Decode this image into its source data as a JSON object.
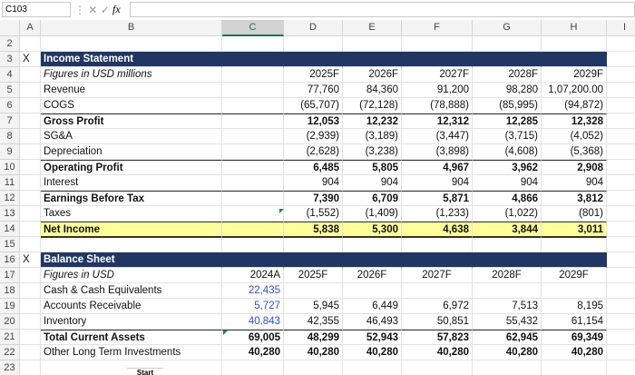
{
  "formula_bar": {
    "name_box": "C103",
    "fx": "fx"
  },
  "columns": [
    "A",
    "B",
    "C",
    "D",
    "E",
    "F",
    "G",
    "H",
    "I"
  ],
  "rows": [
    {
      "row": "2",
      "cells": {}
    },
    {
      "row": "3",
      "cells": {
        "A": "X",
        "B": "Income Statement"
      }
    },
    {
      "row": "4",
      "cells": {
        "B": "Figures in USD millions",
        "D": "2025F",
        "E": "2026F",
        "F": "2027F",
        "G": "2028F",
        "H": "2029F"
      }
    },
    {
      "row": "5",
      "cells": {
        "B": "Revenue",
        "D": "77,760",
        "E": "84,360",
        "F": "91,200",
        "G": "98,280",
        "H": "1,07,200.00"
      }
    },
    {
      "row": "6",
      "cells": {
        "B": "COGS",
        "D": "(65,707)",
        "E": "(72,128)",
        "F": "(78,888)",
        "G": "(85,995)",
        "H": "(94,872)"
      }
    },
    {
      "row": "7",
      "cells": {
        "B": "Gross Profit",
        "D": "12,053",
        "E": "12,232",
        "F": "12,312",
        "G": "12,285",
        "H": "12,328"
      }
    },
    {
      "row": "8",
      "cells": {
        "B": "SG&A",
        "D": "(2,939)",
        "E": "(3,189)",
        "F": "(3,447)",
        "G": "(3,715)",
        "H": "(4,052)"
      }
    },
    {
      "row": "9",
      "cells": {
        "B": "Depreciation",
        "D": "(2,628)",
        "E": "(3,238)",
        "F": "(3,898)",
        "G": "(4,608)",
        "H": "(5,368)"
      }
    },
    {
      "row": "10",
      "cells": {
        "B": "Operating Profit",
        "D": "6,485",
        "E": "5,805",
        "F": "4,967",
        "G": "3,962",
        "H": "2,908"
      }
    },
    {
      "row": "11",
      "cells": {
        "B": "Interest",
        "D": "904",
        "E": "904",
        "F": "904",
        "G": "904",
        "H": "904"
      }
    },
    {
      "row": "12",
      "cells": {
        "B": "Earnings Before Tax",
        "D": "7,390",
        "E": "6,709",
        "F": "5,871",
        "G": "4,866",
        "H": "3,812"
      }
    },
    {
      "row": "13",
      "cells": {
        "B": "Taxes",
        "D": "(1,552)",
        "E": "(1,409)",
        "F": "(1,233)",
        "G": "(1,022)",
        "H": "(801)"
      }
    },
    {
      "row": "14",
      "cells": {
        "B": "Net Income",
        "D": "5,838",
        "E": "5,300",
        "F": "4,638",
        "G": "3,844",
        "H": "3,011"
      }
    },
    {
      "row": "15",
      "cells": {}
    },
    {
      "row": "16",
      "cells": {
        "A": "X",
        "B": "Balance Sheet"
      }
    },
    {
      "row": "17",
      "cells": {
        "B": "Figures in USD",
        "C": "2024A",
        "D": "2025F",
        "E": "2026F",
        "F": "2027F",
        "G": "2028F",
        "H": "2029F"
      }
    },
    {
      "row": "18",
      "cells": {
        "B": "Cash & Cash Equivalents",
        "C": "22,435"
      }
    },
    {
      "row": "19",
      "cells": {
        "B": "Accounts Receivable",
        "C": "5,727",
        "D": "5,945",
        "E": "6,449",
        "F": "6,972",
        "G": "7,513",
        "H": "8,195"
      }
    },
    {
      "row": "20",
      "cells": {
        "B": "Inventory",
        "C": "40,843",
        "D": "42,355",
        "E": "46,493",
        "F": "50,851",
        "G": "55,432",
        "H": "61,154"
      }
    },
    {
      "row": "21",
      "cells": {
        "B": "Total Current Assets",
        "C": "69,005",
        "D": "48,299",
        "E": "52,943",
        "F": "57,823",
        "G": "62,945",
        "H": "69,349"
      }
    },
    {
      "row": "22",
      "cells": {
        "B": "Other Long Term Investments",
        "C": "40,280",
        "D": "40,280",
        "E": "40,280",
        "F": "40,280",
        "G": "40,280",
        "H": "40,280"
      }
    },
    {
      "row": "23",
      "cells": {}
    }
  ],
  "sheet_tabs": [
    "Start"
  ]
}
